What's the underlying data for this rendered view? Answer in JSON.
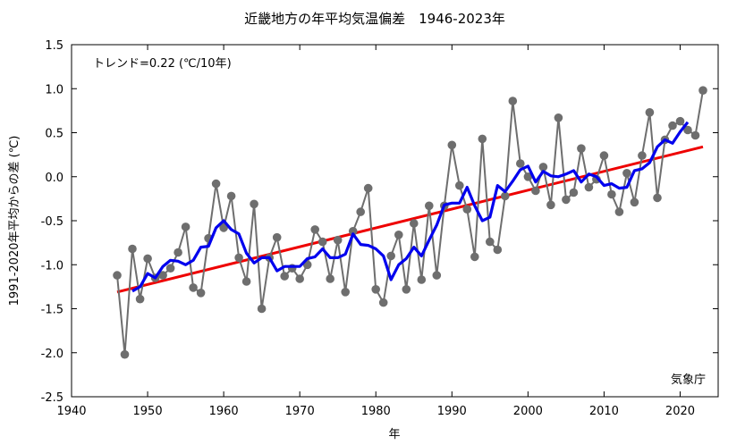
{
  "chart_data": {
    "type": "line",
    "title": "近畿地方の年平均気温偏差　1946-2023年",
    "xlabel": "年",
    "ylabel": "1991-2020年平均からの差 (℃)",
    "trend_label": "トレンド=0.22 (℃/10年)",
    "source_label": "気象庁",
    "xlim": [
      1940,
      2025
    ],
    "ylim": [
      -2.5,
      1.5
    ],
    "x_ticks": [
      1940,
      1950,
      1960,
      1970,
      1980,
      1990,
      2000,
      2010,
      2020
    ],
    "y_ticks": [
      -2.5,
      -2.0,
      -1.5,
      -1.0,
      -0.5,
      0.0,
      0.5,
      1.0,
      1.5
    ],
    "y_tick_labels": [
      "-2.5",
      "-2.0",
      "-1.5",
      "-1.0",
      "-0.5",
      "0.0",
      "0.5",
      "1.0",
      "1.5"
    ],
    "x": [
      1946,
      1947,
      1948,
      1949,
      1950,
      1951,
      1952,
      1953,
      1954,
      1955,
      1956,
      1957,
      1958,
      1959,
      1960,
      1961,
      1962,
      1963,
      1964,
      1965,
      1966,
      1967,
      1968,
      1969,
      1970,
      1971,
      1972,
      1973,
      1974,
      1975,
      1976,
      1977,
      1978,
      1979,
      1980,
      1981,
      1982,
      1983,
      1984,
      1985,
      1986,
      1987,
      1988,
      1989,
      1990,
      1991,
      1992,
      1993,
      1994,
      1995,
      1996,
      1997,
      1998,
      1999,
      2000,
      2001,
      2002,
      2003,
      2004,
      2005,
      2006,
      2007,
      2008,
      2009,
      2010,
      2011,
      2012,
      2013,
      2014,
      2015,
      2016,
      2017,
      2018,
      2019,
      2020,
      2021,
      2022,
      2023
    ],
    "series": [
      {
        "values": [
          -1.12,
          -2.02,
          -0.82,
          -1.39,
          -0.93,
          -1.15,
          -1.12,
          -1.04,
          -0.86,
          -0.57,
          -1.26,
          -1.32,
          -0.7,
          -0.08,
          -0.58,
          -0.22,
          -0.92,
          -1.19,
          -0.31,
          -1.5,
          -0.92,
          -0.69,
          -1.13,
          -1.04,
          -1.16,
          -1.0,
          -0.6,
          -0.74,
          -1.16,
          -0.72,
          -1.31,
          -0.62,
          -0.4,
          -0.13,
          -1.28,
          -1.43,
          -0.9,
          -0.66,
          -1.28,
          -0.53,
          -1.17,
          -0.33,
          -1.12,
          -0.33,
          0.36,
          -0.1,
          -0.37,
          -0.91,
          0.43,
          -0.74,
          -0.83,
          -0.22,
          0.86,
          0.15,
          0.0,
          -0.16,
          0.11,
          -0.32,
          0.67,
          -0.26,
          -0.18,
          0.32,
          -0.12,
          -0.03,
          0.24,
          -0.2,
          -0.4,
          0.04,
          -0.29,
          0.24,
          0.73,
          -0.24,
          0.42,
          0.58,
          0.63,
          0.53,
          0.47,
          0.98
        ],
        "color": "#6e6e6e"
      },
      {
        "x": [
          1948,
          1949,
          1950,
          1951,
          1952,
          1953,
          1954,
          1955,
          1956,
          1957,
          1958,
          1959,
          1960,
          1961,
          1962,
          1963,
          1964,
          1965,
          1966,
          1967,
          1968,
          1969,
          1970,
          1971,
          1972,
          1973,
          1974,
          1975,
          1976,
          1977,
          1978,
          1979,
          1980,
          1981,
          1982,
          1983,
          1984,
          1985,
          1986,
          1987,
          1988,
          1989,
          1990,
          1991,
          1992,
          1993,
          1994,
          1995,
          1996,
          1997,
          1998,
          1999,
          2000,
          2001,
          2002,
          2003,
          2004,
          2005,
          2006,
          2007,
          2008,
          2009,
          2010,
          2011,
          2012,
          2013,
          2014,
          2015,
          2016,
          2017,
          2018,
          2019,
          2020,
          2021
        ],
        "values": [
          -1.3,
          -1.25,
          -1.1,
          -1.15,
          -1.02,
          -0.95,
          -0.96,
          -1.0,
          -0.95,
          -0.8,
          -0.79,
          -0.58,
          -0.5,
          -0.6,
          -0.65,
          -0.87,
          -0.98,
          -0.92,
          -0.92,
          -1.07,
          -1.02,
          -1.02,
          -1.02,
          -0.93,
          -0.91,
          -0.82,
          -0.92,
          -0.92,
          -0.88,
          -0.65,
          -0.77,
          -0.78,
          -0.82,
          -0.9,
          -1.17,
          -1.0,
          -0.93,
          -0.8,
          -0.9,
          -0.72,
          -0.55,
          -0.32,
          -0.3,
          -0.3,
          -0.12,
          -0.33,
          -0.5,
          -0.46,
          -0.1,
          -0.17,
          -0.05,
          0.08,
          0.12,
          -0.06,
          0.06,
          0.01,
          0.0,
          0.03,
          0.07,
          -0.06,
          0.03,
          0.0,
          -0.1,
          -0.08,
          -0.13,
          -0.12,
          0.07,
          0.09,
          0.16,
          0.34,
          0.42,
          0.38,
          0.51,
          0.62
        ],
        "color": "#0000ee"
      },
      {
        "x": [
          1946,
          2023
        ],
        "values": [
          -1.31,
          0.34
        ],
        "color": "#ee0000"
      }
    ],
    "grid": false,
    "legend": "none"
  }
}
